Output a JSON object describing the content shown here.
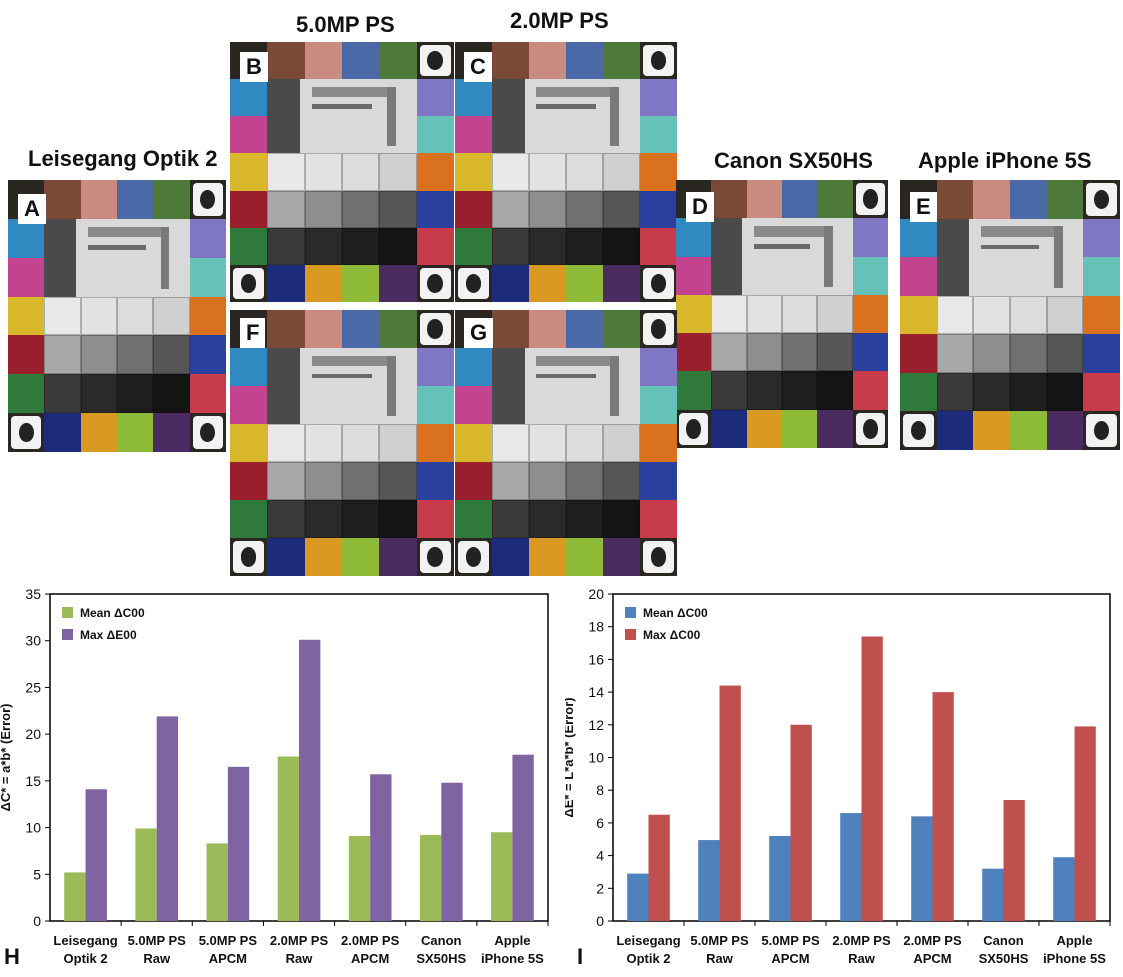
{
  "headings": {
    "ps5": "5.0MP PS",
    "ps2": "2.0MP PS",
    "leisegang": "Leisegang Optik 2",
    "canon": "Canon SX50HS",
    "apple": "Apple iPhone 5S"
  },
  "panel_letters": {
    "A": "A",
    "B": "B",
    "C": "C",
    "D": "D",
    "E": "E",
    "F": "F",
    "G": "G",
    "H": "H",
    "I": "I"
  },
  "swatch_palette": {
    "top": [
      "#7b4a36",
      "#c98a80",
      "#4a69a6",
      "#4d7a3b"
    ],
    "left": [
      "#3089c0",
      "#c4438e",
      "#d8b82a",
      "#9a1f2d",
      "#2f7a3a"
    ],
    "right": [
      "#7f77c4",
      "#66c1b8",
      "#d9711f",
      "#2a3f9e",
      "#c73b4a"
    ],
    "bottom": [
      "#1d2b7d",
      "#d99a22",
      "#8dbb38",
      "#4a2c62"
    ],
    "gray_rows": [
      [
        "#e8e8e8",
        "#e2e2e2",
        "#dcdcdc",
        "#d0d0d0"
      ],
      [
        "#a8a8a8",
        "#8e8e8e",
        "#707070",
        "#565656"
      ],
      [
        "#3a3a3a",
        "#2a2a2a",
        "#1e1e1e",
        "#141414"
      ]
    ]
  },
  "chart_data": [
    {
      "type": "bar",
      "ylabel": "ΔC* = a*b* (Error)",
      "ylim": [
        0,
        35
      ],
      "yticks": [
        "0",
        "5",
        "10",
        "15",
        "20",
        "25",
        "30",
        "35"
      ],
      "grid": false,
      "legend_position": "top-left",
      "categories": [
        "Leisegang Optik 2",
        "5.0MP PS Raw",
        "5.0MP PS APCM",
        "2.0MP PS Raw",
        "2.0MP PS APCM",
        "Canon SX50HS",
        "Apple iPhone 5S"
      ],
      "category_lines": [
        [
          "Leisegang",
          "Optik 2"
        ],
        [
          "5.0MP PS",
          "Raw"
        ],
        [
          "5.0MP PS",
          "APCM"
        ],
        [
          "2.0MP PS",
          "Raw"
        ],
        [
          "2.0MP PS",
          "APCM"
        ],
        [
          "Canon",
          "SX50HS"
        ],
        [
          "Apple",
          "iPhone 5S"
        ]
      ],
      "series": [
        {
          "name": "Mean ΔC00",
          "color": "#9bbb59",
          "values": [
            5.2,
            9.9,
            8.3,
            17.6,
            9.1,
            9.2,
            9.5
          ]
        },
        {
          "name": "Max ΔE00",
          "color": "#8064a2",
          "values": [
            14.1,
            21.9,
            16.5,
            30.1,
            15.7,
            14.8,
            17.8
          ]
        }
      ]
    },
    {
      "type": "bar",
      "ylabel": "ΔE* = L*a*b* (Error)",
      "ylim": [
        0,
        20
      ],
      "yticks": [
        "0",
        "2",
        "4",
        "6",
        "8",
        "10",
        "12",
        "14",
        "16",
        "18",
        "20"
      ],
      "grid": false,
      "legend_position": "top-left",
      "categories": [
        "Leisegang Optik 2",
        "5.0MP PS Raw",
        "5.0MP PS APCM",
        "2.0MP PS Raw",
        "2.0MP PS APCM",
        "Canon SX50HS",
        "Apple iPhone 5S"
      ],
      "category_lines": [
        [
          "Leisegang",
          "Optik 2"
        ],
        [
          "5.0MP PS",
          "Raw"
        ],
        [
          "5.0MP PS",
          "APCM"
        ],
        [
          "2.0MP PS",
          "Raw"
        ],
        [
          "2.0MP PS",
          "APCM"
        ],
        [
          "Canon",
          "SX50HS"
        ],
        [
          "Apple",
          "iPhone 5S"
        ]
      ],
      "series": [
        {
          "name": "Mean ΔC00",
          "color": "#4f81bd",
          "values": [
            2.9,
            4.95,
            5.2,
            6.6,
            6.4,
            3.2,
            3.9
          ]
        },
        {
          "name": "Max ΔC00",
          "color": "#c0504d",
          "values": [
            6.5,
            14.4,
            12.0,
            17.4,
            14.0,
            7.4,
            11.9
          ]
        }
      ]
    }
  ]
}
